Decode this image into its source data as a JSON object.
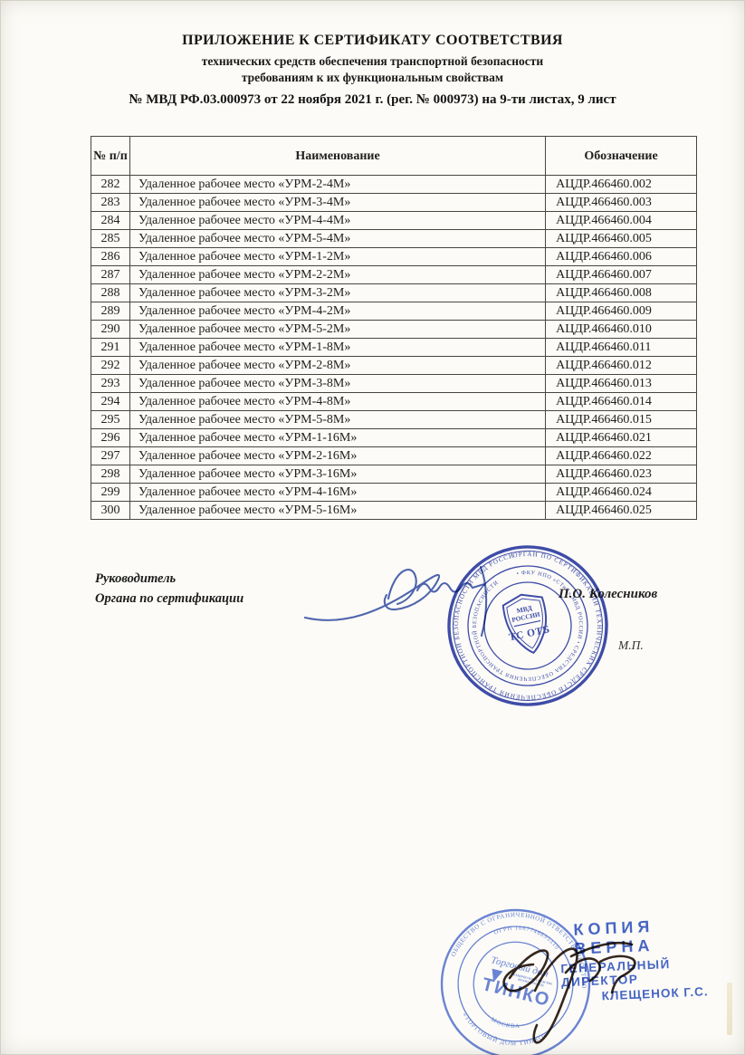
{
  "header": {
    "title_line1": "ПРИЛОЖЕНИЕ К СЕРТИФИКАТУ СООТВЕТСТВИЯ",
    "title_line2": "технических средств обеспечения транспортной безопасности",
    "title_line3": "требованиям к их функциональным свойствам",
    "number_line": "№ МВД РФ.03.000973 от 22 ноября 2021 г. (рег. № 000973) на 9-ти листах, 9 лист"
  },
  "table": {
    "columns": [
      "№ п/п",
      "Наименование",
      "Обозначение"
    ],
    "rows": [
      {
        "num": "282",
        "name": "Удаленное рабочее место «УРМ-2-4М»",
        "code": "АЦДР.466460.002"
      },
      {
        "num": "283",
        "name": "Удаленное рабочее место «УРМ-3-4М»",
        "code": "АЦДР.466460.003"
      },
      {
        "num": "284",
        "name": "Удаленное рабочее место «УРМ-4-4М»",
        "code": "АЦДР.466460.004"
      },
      {
        "num": "285",
        "name": "Удаленное рабочее место «УРМ-5-4М»",
        "code": "АЦДР.466460.005"
      },
      {
        "num": "286",
        "name": "Удаленное рабочее место «УРМ-1-2М»",
        "code": "АЦДР.466460.006"
      },
      {
        "num": "287",
        "name": "Удаленное рабочее место «УРМ-2-2М»",
        "code": "АЦДР.466460.007"
      },
      {
        "num": "288",
        "name": "Удаленное рабочее место «УРМ-3-2М»",
        "code": "АЦДР.466460.008"
      },
      {
        "num": "289",
        "name": "Удаленное рабочее место «УРМ-4-2М»",
        "code": "АЦДР.466460.009"
      },
      {
        "num": "290",
        "name": "Удаленное рабочее место «УРМ-5-2М»",
        "code": "АЦДР.466460.010"
      },
      {
        "num": "291",
        "name": "Удаленное рабочее место «УРМ-1-8М»",
        "code": "АЦДР.466460.011"
      },
      {
        "num": "292",
        "name": "Удаленное рабочее место «УРМ-2-8М»",
        "code": "АЦДР.466460.012"
      },
      {
        "num": "293",
        "name": "Удаленное рабочее место «УРМ-3-8М»",
        "code": "АЦДР.466460.013"
      },
      {
        "num": "294",
        "name": "Удаленное рабочее место «УРМ-4-8М»",
        "code": "АЦДР.466460.014"
      },
      {
        "num": "295",
        "name": "Удаленное рабочее место «УРМ-5-8М»",
        "code": "АЦДР.466460.015"
      },
      {
        "num": "296",
        "name": "Удаленное рабочее место «УРМ-1-16М»",
        "code": "АЦДР.466460.021"
      },
      {
        "num": "297",
        "name": "Удаленное рабочее место «УРМ-2-16М»",
        "code": "АЦДР.466460.022"
      },
      {
        "num": "298",
        "name": "Удаленное рабочее место «УРМ-3-16М»",
        "code": "АЦДР.466460.023"
      },
      {
        "num": "299",
        "name": "Удаленное рабочее место «УРМ-4-16М»",
        "code": "АЦДР.466460.024"
      },
      {
        "num": "300",
        "name": "Удаленное рабочее место «УРМ-5-16М»",
        "code": "АЦДР.466460.025"
      }
    ]
  },
  "signature_block": {
    "role_line1": "Руководитель",
    "role_line2": "Органа по сертификации",
    "signer_name": "П.О. Колесников",
    "stamp_place_abbr": "М.П."
  },
  "cert_stamp": {
    "ring_text_outer": "ОРГАН ПО СЕРТИФИКАЦИИ ТЕХНИЧЕСКИХ СРЕДСТВ ОБЕСПЕЧЕНИЯ ТРАНСПОРТНОЙ БЕЗОПАСНОСТИ МВД РОССИИ •",
    "ring_text_inner": "• ФКУ НПО «СТиС» МВД РОССИИ • СРЕДСТВА ОБЕСПЕЧЕНИЯ ТРАНСПОРТНОЙ БЕЗОПАСНОСТИ",
    "shield_line1": "МВД",
    "shield_line2": "РОССИИ",
    "shield_line3": "ТС ОТБ",
    "color": "#2f3fa8"
  },
  "company_stamp": {
    "ring_outer_top": "ОБЩЕСТВО С ОГРАНИЧЕННОЙ ОТВЕТСТВЕННОСТЬЮ",
    "ring_outer_bottom": "«ТОРГОВЫЙ ДОМ ТИНКО»",
    "ring_inner_top": "ОГРН 1087746895310",
    "ring_inner_bottom": "• МОСКВА •",
    "center_line1": "Торговый дом",
    "center_sub1": "ТЕХНИЧЕСКИЕ СРЕДСТВА",
    "center_sub2": "БЕЗОПАСНОСТИ",
    "center_logo": "ТИНКО",
    "color": "#5b79d6"
  },
  "copy_stamp": {
    "line1": "КОПИЯ ВЕРНА",
    "line2": "ГЕНЕРАЛЬНЫЙ ДИРЕКТОР",
    "line3": "КЛЕЩЕНОК Г.С.",
    "color": "#3d5fc8"
  }
}
